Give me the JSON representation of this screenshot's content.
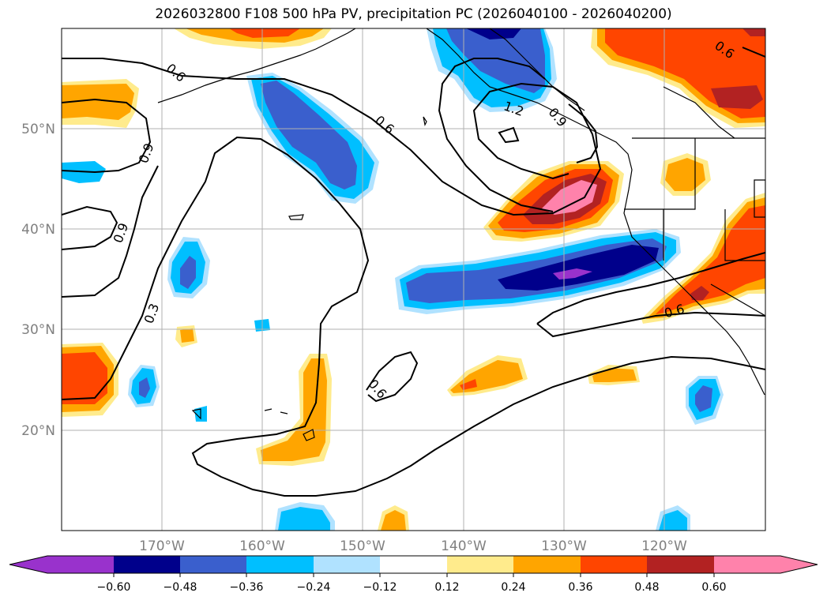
{
  "title": "2026032800 F108 500 hPa PV, precipitation PC (2026040100 - 2026040200)",
  "gridlines": {
    "lat_labels": [
      "50°N",
      "40°N",
      "30°N",
      "20°N"
    ],
    "lon_labels": [
      "170°W",
      "160°W",
      "150°W",
      "140°W",
      "130°W",
      "120°W"
    ]
  },
  "pv_contour_labels": [
    "0.6",
    "0.6",
    "0.9",
    "0.9",
    "0.3",
    "0.6",
    "1.2",
    "0.9",
    "0.6",
    "0.6"
  ],
  "colorbar": {
    "tick_labels": [
      "−0.60",
      "−0.48",
      "−0.36",
      "−0.24",
      "−0.12",
      "0.12",
      "0.24",
      "0.36",
      "0.48",
      "0.60"
    ],
    "colors": [
      "#9932cc",
      "#00008b",
      "#3a5fcd",
      "#00bfff",
      "#b0e2ff",
      "#ffffff",
      "#ffeb8c",
      "#ffa500",
      "#ff4500",
      "#b22222",
      "#ff82ab"
    ]
  },
  "colors": {
    "neg_light": "#b0e2ff",
    "neg_cyan": "#00bfff",
    "neg_blue": "#3a5fcd",
    "neg_navy": "#00008b",
    "neg_purple": "#9932cc",
    "pos_yellow": "#ffeb8c",
    "pos_orange": "#ffa500",
    "pos_red": "#ff4500",
    "pos_darkred": "#b22222",
    "pos_pink": "#ff82ab"
  }
}
